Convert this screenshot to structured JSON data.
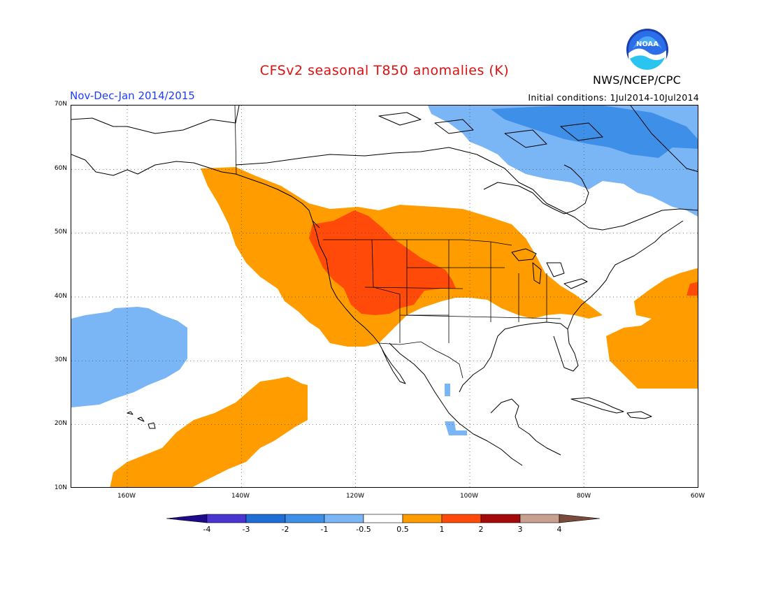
{
  "title": "CFSv2 seasonal T850 anomalies (K)",
  "period": "Nov-Dec-Jan 2014/2015",
  "initial_conditions": "Initial conditions: 1Jul2014-10Jul2014",
  "agency": "NWS/NCEP/CPC",
  "logo_text": "NOAA",
  "axes": {
    "lat_ticks": [
      "70N",
      "60N",
      "50N",
      "40N",
      "30N",
      "20N",
      "10N"
    ],
    "lon_ticks": [
      "160W",
      "140W",
      "120W",
      "100W",
      "80W",
      "60W"
    ]
  },
  "colorbar": {
    "labels": [
      "-4",
      "-3",
      "-2",
      "-1",
      "-0.5",
      "0.5",
      "1",
      "2",
      "3",
      "4"
    ],
    "colors": [
      "#1e0a8c",
      "#4a35d0",
      "#1f6ed6",
      "#3d8fe8",
      "#7ab5f5",
      "#ffffff",
      "#ff9c00",
      "#ff4a0a",
      "#a50a0a",
      "#c8a090",
      "#7a4a3a"
    ]
  },
  "anomaly_colors": {
    "negative_light": "#7ab5f5",
    "negative_medium": "#3d8fe8",
    "positive_light": "#ff9c00",
    "positive_medium": "#ff4a0a",
    "positive_strong": "#e8200a"
  }
}
